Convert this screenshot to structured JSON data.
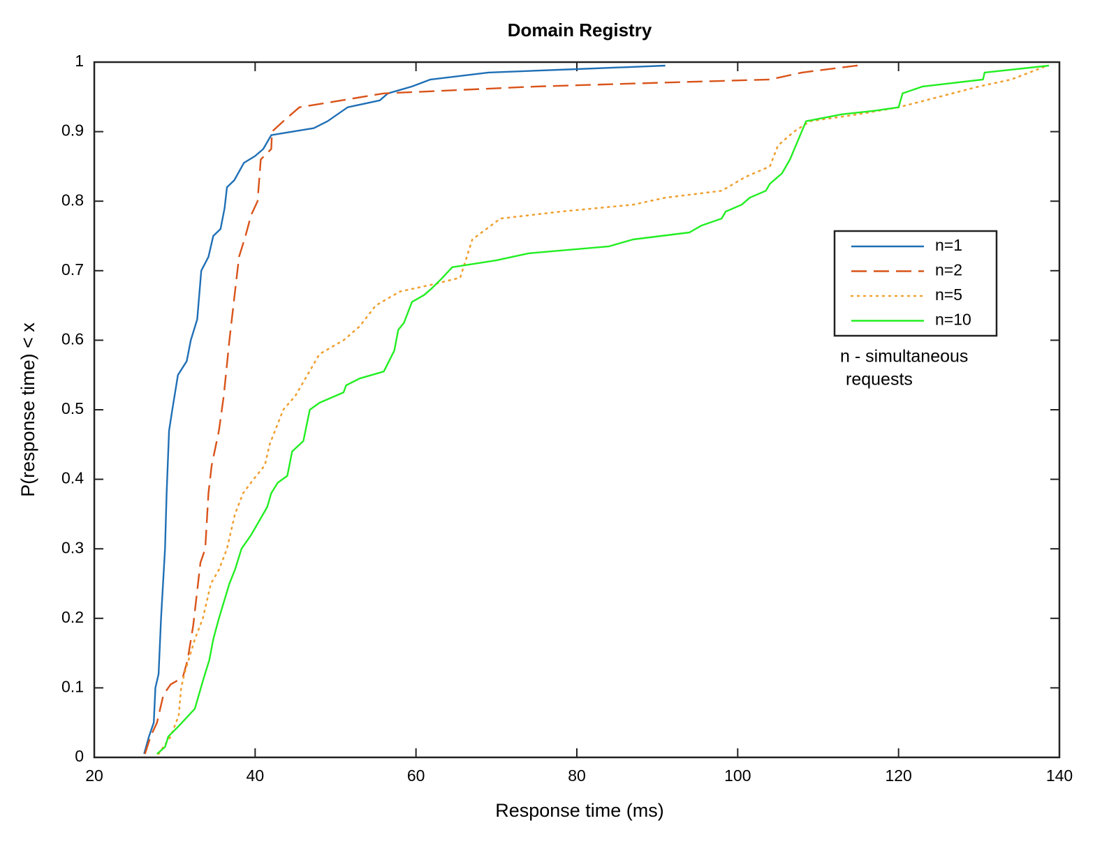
{
  "chart_data": {
    "type": "line",
    "title": "Domain Registry",
    "x_label": "Response time (ms)",
    "y_label": "P(response time) < x",
    "xlim": [
      20,
      140
    ],
    "ylim": [
      0,
      1
    ],
    "xticks": [
      20,
      40,
      60,
      80,
      100,
      120,
      140
    ],
    "yticks": [
      0,
      0.1,
      0.2,
      0.3,
      0.4,
      0.5,
      0.6,
      0.7,
      0.8,
      0.9,
      1
    ],
    "grid": false,
    "legend": "east",
    "annotation": [
      "n - simultaneous",
      "requests"
    ],
    "series": [
      {
        "name": "n=1",
        "color": "#1f6fb5",
        "style": "solid",
        "x": [
          26.2,
          26.8,
          27.4,
          27.6,
          28.0,
          28.3,
          28.8,
          29.0,
          29.3,
          29.7,
          30.4,
          31.5,
          32.0,
          32.8,
          33.3,
          34.2,
          34.8,
          35.7,
          36.2,
          36.5,
          37.4,
          38.6,
          40.0,
          41.0,
          42.0,
          47.3,
          49.0,
          51.5,
          55.5,
          56.5,
          59.5,
          61.8,
          69.0,
          80.0,
          91.0
        ],
        "values": [
          0.005,
          0.03,
          0.05,
          0.1,
          0.12,
          0.2,
          0.3,
          0.38,
          0.47,
          0.5,
          0.55,
          0.57,
          0.6,
          0.63,
          0.7,
          0.72,
          0.75,
          0.76,
          0.79,
          0.82,
          0.83,
          0.855,
          0.865,
          0.875,
          0.895,
          0.905,
          0.915,
          0.935,
          0.945,
          0.955,
          0.965,
          0.975,
          0.985,
          0.99,
          0.995
        ]
      },
      {
        "name": "n=2",
        "color": "#d95319",
        "style": "dashed",
        "x": [
          26.3,
          27.0,
          27.8,
          28.6,
          29.5,
          31.0,
          31.6,
          32.3,
          33.2,
          33.8,
          34.2,
          34.6,
          35.5,
          36.1,
          36.8,
          37.5,
          38.0,
          38.8,
          39.5,
          40.3,
          40.7,
          42.0,
          42.1,
          43.5,
          45.5,
          56.0,
          75.0,
          95.0,
          104.0,
          108.0,
          115.5
        ],
        "values": [
          0.005,
          0.03,
          0.05,
          0.09,
          0.105,
          0.115,
          0.14,
          0.19,
          0.28,
          0.3,
          0.38,
          0.42,
          0.47,
          0.52,
          0.6,
          0.67,
          0.72,
          0.75,
          0.78,
          0.8,
          0.86,
          0.875,
          0.9,
          0.915,
          0.935,
          0.955,
          0.965,
          0.972,
          0.975,
          0.985,
          0.996
        ]
      },
      {
        "name": "n=5",
        "color": "#f0a030",
        "style": "dotted",
        "x": [
          28.0,
          29.5,
          30.5,
          30.8,
          31.2,
          32.5,
          33.5,
          34.5,
          35.5,
          36.5,
          37.5,
          38.5,
          39.8,
          41.2,
          41.8,
          43.5,
          45.0,
          46.5,
          48.0,
          51.0,
          53.0,
          55.0,
          58.0,
          62.0,
          65.5,
          67.0,
          70.5,
          78.0,
          87.0,
          91.0,
          98.0,
          101.0,
          104.0,
          105.0,
          107.0,
          109.0,
          115.0,
          120.0,
          125.0,
          130.0,
          134.0,
          138.5
        ],
        "values": [
          0.005,
          0.03,
          0.06,
          0.1,
          0.12,
          0.17,
          0.2,
          0.25,
          0.27,
          0.3,
          0.35,
          0.38,
          0.4,
          0.42,
          0.45,
          0.5,
          0.52,
          0.55,
          0.58,
          0.6,
          0.62,
          0.65,
          0.67,
          0.68,
          0.69,
          0.745,
          0.775,
          0.785,
          0.795,
          0.805,
          0.815,
          0.835,
          0.85,
          0.88,
          0.9,
          0.915,
          0.925,
          0.935,
          0.95,
          0.965,
          0.975,
          0.995
        ]
      },
      {
        "name": "n=10",
        "color": "#22ee22",
        "style": "solid",
        "x": [
          27.8,
          28.8,
          29.2,
          30.5,
          32.5,
          33.5,
          34.3,
          34.8,
          35.5,
          36.8,
          37.5,
          38.3,
          39.5,
          40.5,
          41.5,
          42.0,
          42.8,
          44.0,
          44.6,
          46.0,
          46.8,
          48.0,
          51.0,
          51.3,
          53.0,
          56.0,
          57.3,
          57.8,
          58.5,
          59.5,
          61.0,
          62.0,
          63.3,
          64.5,
          70.0,
          74.0,
          84.0,
          87.0,
          94.0,
          95.5,
          98.0,
          98.5,
          100.5,
          101.5,
          103.5,
          104.0,
          105.5,
          106.5,
          108.5,
          113.0,
          117.0,
          120.0,
          120.5,
          123.0,
          130.5,
          130.7,
          138.7
        ],
        "values": [
          0.005,
          0.015,
          0.03,
          0.045,
          0.07,
          0.11,
          0.14,
          0.17,
          0.2,
          0.25,
          0.27,
          0.3,
          0.32,
          0.34,
          0.36,
          0.38,
          0.395,
          0.405,
          0.44,
          0.455,
          0.5,
          0.51,
          0.525,
          0.535,
          0.545,
          0.555,
          0.585,
          0.615,
          0.625,
          0.655,
          0.665,
          0.675,
          0.69,
          0.705,
          0.715,
          0.725,
          0.735,
          0.745,
          0.755,
          0.765,
          0.775,
          0.785,
          0.795,
          0.805,
          0.815,
          0.825,
          0.84,
          0.86,
          0.915,
          0.925,
          0.93,
          0.935,
          0.955,
          0.965,
          0.975,
          0.985,
          0.995
        ]
      }
    ]
  }
}
